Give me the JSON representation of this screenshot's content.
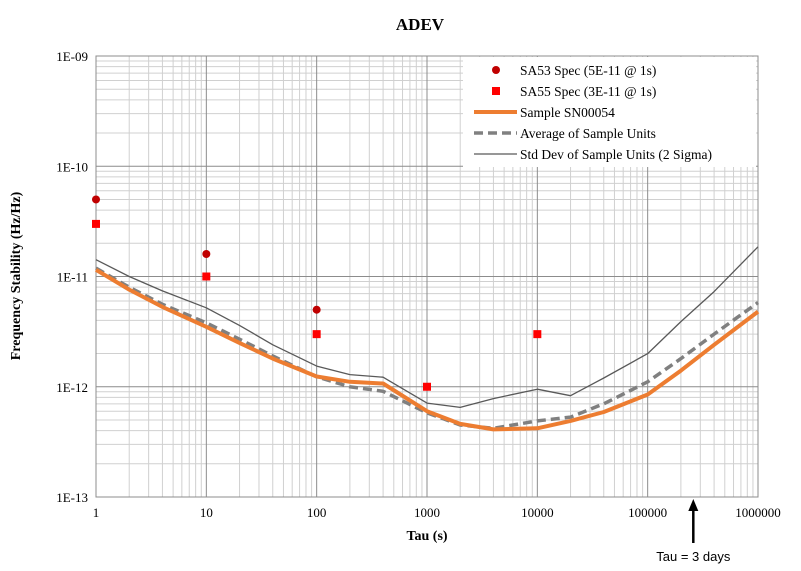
{
  "chart_data": {
    "type": "line",
    "title": "ADEV",
    "xlabel": "Tau (s)",
    "ylabel": "Frequency Stability (Hz/Hz)",
    "x_scale": "log",
    "y_scale": "log",
    "xlim": [
      1,
      1000000
    ],
    "ylim": [
      1e-13,
      1e-09
    ],
    "grid": true,
    "legend_position": "top-right",
    "x_ticks": [
      1,
      10,
      100,
      1000,
      10000,
      100000,
      1000000
    ],
    "x_tick_labels": [
      "1",
      "10",
      "100",
      "1000",
      "10000",
      "100000",
      "1000000"
    ],
    "y_ticks": [
      1e-13,
      1e-12,
      1e-11,
      1e-10,
      1e-09
    ],
    "y_tick_labels": [
      "1E-13",
      "1E-12",
      "1E-11",
      "1E-10",
      "1E-09"
    ],
    "series": [
      {
        "name": "SA53 Spec (5E-11 @ 1s)",
        "kind": "marker-circle",
        "color": "#c00000",
        "x": [
          1,
          10,
          100
        ],
        "y": [
          5e-11,
          1.6e-11,
          5e-12
        ]
      },
      {
        "name": "SA55 Spec (3E-11 @ 1s)",
        "kind": "marker-square",
        "color": "#ff0000",
        "x": [
          1,
          10,
          100,
          1000,
          10000
        ],
        "y": [
          3e-11,
          1e-11,
          3e-12,
          1e-12,
          3e-12
        ]
      },
      {
        "name": "Sample SN00054",
        "kind": "thick-line",
        "color": "#ed7d31",
        "x": [
          1,
          2,
          4,
          10,
          20,
          40,
          100,
          200,
          400,
          1000,
          2000,
          4000,
          10000,
          20000,
          40000,
          100000,
          200000,
          400000,
          1000000
        ],
        "y": [
          1.15e-11,
          7.6e-12,
          5.3e-12,
          3.5e-12,
          2.5e-12,
          1.8e-12,
          1.24e-12,
          1.11e-12,
          1.07e-12,
          6e-13,
          4.6e-13,
          4.1e-13,
          4.2e-13,
          4.9e-13,
          5.9e-13,
          8.5e-13,
          1.4e-12,
          2.4e-12,
          4.8e-12
        ]
      },
      {
        "name": "Average of Sample Units",
        "kind": "dashed-line",
        "color": "#808080",
        "x": [
          1,
          2,
          4,
          10,
          20,
          40,
          100,
          200,
          400,
          1000,
          2000,
          4000,
          10000,
          20000,
          40000,
          100000,
          200000,
          400000,
          1000000
        ],
        "y": [
          1.19e-11,
          8e-12,
          5.6e-12,
          3.8e-12,
          2.7e-12,
          1.9e-12,
          1.23e-12,
          1e-12,
          9.1e-13,
          5.8e-13,
          4.5e-13,
          4.2e-13,
          4.9e-13,
          5.3e-13,
          7e-13,
          1.11e-12,
          1.8e-12,
          3e-12,
          5.8e-12
        ]
      },
      {
        "name": "Std Dev of Sample Units (2 Sigma)",
        "kind": "thin-line",
        "color": "#595959",
        "x": [
          1,
          2,
          4,
          10,
          20,
          40,
          100,
          200,
          400,
          1000,
          2000,
          4000,
          10000,
          20000,
          40000,
          100000,
          200000,
          400000,
          1000000
        ],
        "y": [
          1.42e-11,
          1e-11,
          7.4e-12,
          5.2e-12,
          3.6e-12,
          2.4e-12,
          1.54e-12,
          1.29e-12,
          1.22e-12,
          7.1e-13,
          6.5e-13,
          7.8e-13,
          9.5e-13,
          8.3e-13,
          1.2e-12,
          2e-12,
          3.9e-12,
          7.3e-12,
          1.86e-11
        ]
      }
    ],
    "annotations": [
      {
        "text": "Tau = 3 days",
        "x": 259200,
        "kind": "arrow"
      }
    ]
  }
}
